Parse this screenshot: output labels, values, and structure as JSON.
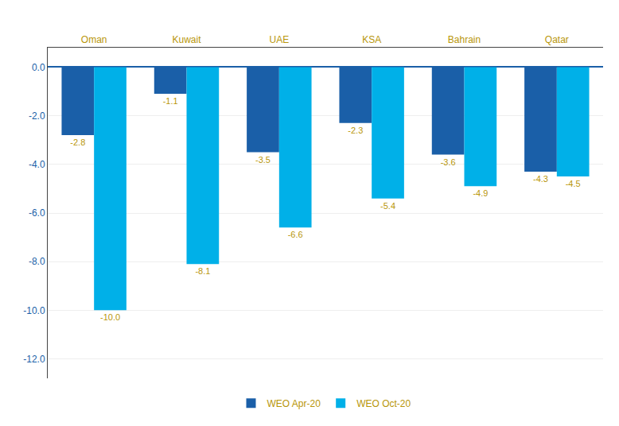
{
  "chart_data": {
    "type": "bar",
    "categories": [
      "Oman",
      "Kuwait",
      "UAE",
      "KSA",
      "Bahrain",
      "Qatar"
    ],
    "series": [
      {
        "name": "WEO Apr-20",
        "color": "#1a5fa8",
        "values": [
          -2.8,
          -1.1,
          -3.5,
          -2.3,
          -3.6,
          -4.3
        ],
        "value_labels": [
          "-2.8",
          "-1.1",
          "-3.5",
          "-2.3",
          "-3.6",
          "-4.3"
        ]
      },
      {
        "name": "WEO Oct-20",
        "color": "#00b0e8",
        "values": [
          -10.0,
          -8.1,
          -6.6,
          -5.4,
          -4.9,
          -4.5
        ],
        "value_labels": [
          "-10.0",
          "-8.1",
          "-6.6",
          "-5.4",
          "-4.9",
          "-4.5"
        ]
      }
    ],
    "ylim": [
      -12.8,
      0.8
    ],
    "yticks": [
      {
        "value": 0.0,
        "label": "0.0"
      },
      {
        "value": -2.0,
        "label": "-2.0"
      },
      {
        "value": -4.0,
        "label": "-4.0"
      },
      {
        "value": -6.0,
        "label": "-6.0"
      },
      {
        "value": -8.0,
        "label": "-8.0"
      },
      {
        "value": -10.0,
        "label": "-10.0"
      },
      {
        "value": -12.0,
        "label": "-12.0"
      }
    ],
    "grid": true,
    "data_labels": true,
    "legend": "bottom"
  }
}
